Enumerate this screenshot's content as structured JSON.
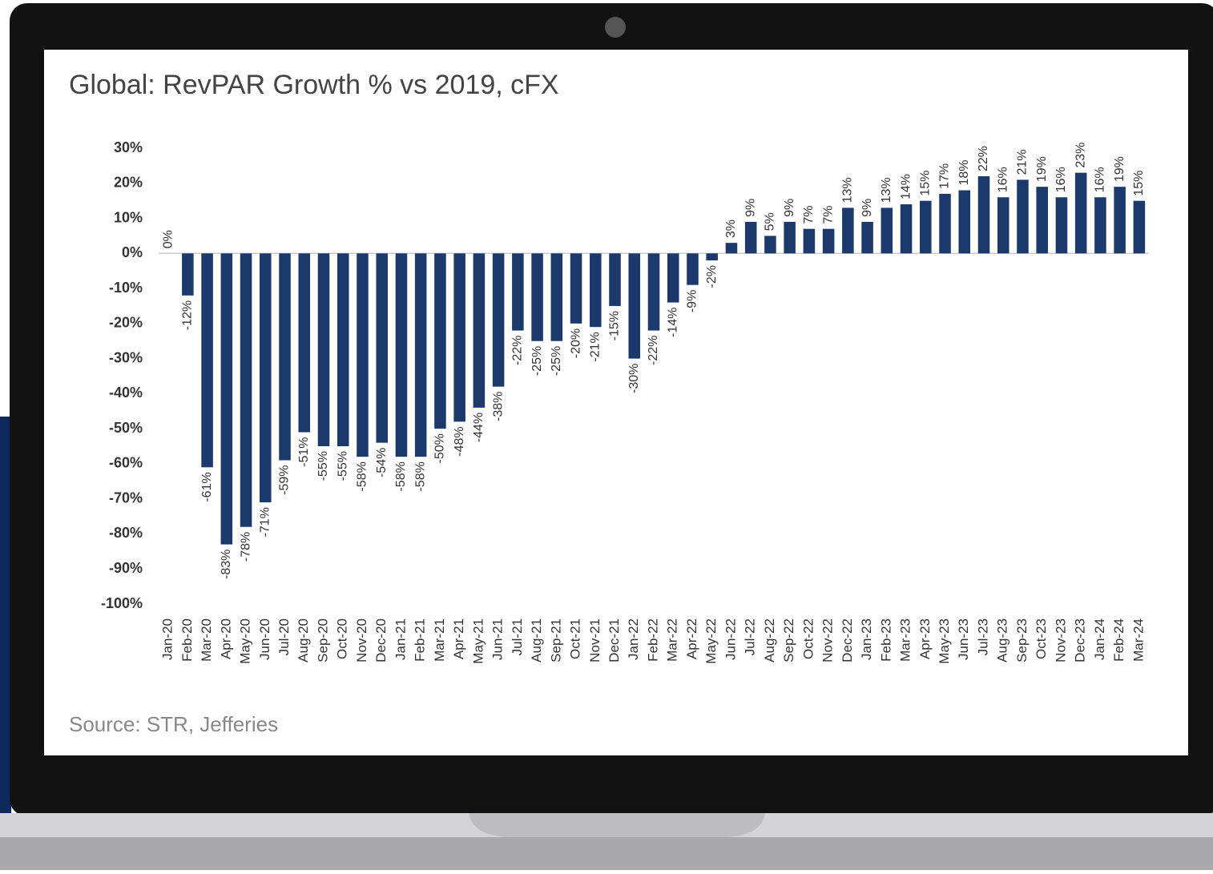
{
  "chart_data": {
    "type": "bar",
    "title": "Global: RevPAR Growth % vs 2019, cFX",
    "source": "Source: STR, Jefferies",
    "categories": [
      "Jan-20",
      "Feb-20",
      "Mar-20",
      "Apr-20",
      "May-20",
      "Jun-20",
      "Jul-20",
      "Aug-20",
      "Sep-20",
      "Oct-20",
      "Nov-20",
      "Dec-20",
      "Jan-21",
      "Feb-21",
      "Mar-21",
      "Apr-21",
      "May-21",
      "Jun-21",
      "Jul-21",
      "Aug-21",
      "Sep-21",
      "Oct-21",
      "Nov-21",
      "Dec-21",
      "Jan-22",
      "Feb-22",
      "Mar-22",
      "Apr-22",
      "May-22",
      "Jun-22",
      "Jul-22",
      "Aug-22",
      "Sep-22",
      "Oct-22",
      "Nov-22",
      "Dec-22",
      "Jan-23",
      "Feb-23",
      "Mar-23",
      "Apr-23",
      "May-23",
      "Jun-23",
      "Jul-23",
      "Aug-23",
      "Sep-23",
      "Oct-23",
      "Nov-23",
      "Dec-23",
      "Jan-24",
      "Feb-24",
      "Mar-24"
    ],
    "values": [
      0,
      -12,
      -61,
      -83,
      -78,
      -71,
      -59,
      -51,
      -55,
      -55,
      -58,
      -54,
      -58,
      -58,
      -50,
      -48,
      -44,
      -38,
      -22,
      -25,
      -25,
      -20,
      -21,
      -15,
      -30,
      -22,
      -14,
      -9,
      -2,
      3,
      9,
      5,
      9,
      7,
      7,
      13,
      9,
      13,
      14,
      15,
      17,
      18,
      22,
      16,
      21,
      19,
      16,
      23,
      16,
      19,
      15
    ],
    "value_labels": [
      "0%",
      "-12%",
      "-61%",
      "-83%",
      "-78%",
      "-71%",
      "-59%",
      "-51%",
      "-55%",
      "-55%",
      "-58%",
      "-54%",
      "-58%",
      "-58%",
      "-50%",
      "-48%",
      "-44%",
      "-38%",
      "-22%",
      "-25%",
      "-25%",
      "-20%",
      "-21%",
      "-15%",
      "-30%",
      "-22%",
      "-14%",
      "-9%",
      "-2%",
      "3%",
      "9%",
      "5%",
      "9%",
      "7%",
      "7%",
      "13%",
      "9%",
      "13%",
      "14%",
      "15%",
      "17%",
      "18%",
      "22%",
      "16%",
      "21%",
      "19%",
      "16%",
      "23%",
      "16%",
      "19%",
      "15%"
    ],
    "color": "#1b3a6b",
    "ylim": [
      -100,
      30
    ],
    "yticks": [
      {
        "value": 30,
        "label": "30%"
      },
      {
        "value": 20,
        "label": "20%"
      },
      {
        "value": 10,
        "label": "10%"
      },
      {
        "value": 0,
        "label": "0%"
      },
      {
        "value": -10,
        "label": "-10%"
      },
      {
        "value": -20,
        "label": "-20%"
      },
      {
        "value": -30,
        "label": "-30%"
      },
      {
        "value": -40,
        "label": "-40%"
      },
      {
        "value": -50,
        "label": "-50%"
      },
      {
        "value": -60,
        "label": "-60%"
      },
      {
        "value": -70,
        "label": "-70%"
      },
      {
        "value": -80,
        "label": "-80%"
      },
      {
        "value": -90,
        "label": "-90%"
      },
      {
        "value": -100,
        "label": "-100%"
      }
    ],
    "grid": false
  }
}
